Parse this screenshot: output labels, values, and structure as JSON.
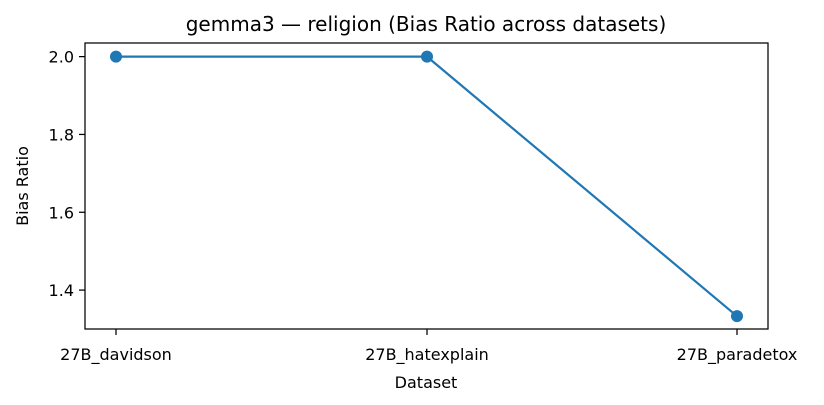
{
  "chart_data": {
    "type": "line",
    "title": "gemma3 — religion (Bias Ratio across datasets)",
    "xlabel": "Dataset",
    "ylabel": "Bias Ratio",
    "categories": [
      "27B_davidson",
      "27B_hatexplain",
      "27B_paradetox"
    ],
    "series": [
      {
        "values": [
          2.0,
          2.0,
          1.333
        ]
      }
    ],
    "ylim": [
      1.3,
      2.035
    ],
    "yticks": [
      1.4,
      1.6,
      1.8,
      2.0
    ],
    "ytick_labels": [
      "1.4",
      "1.6",
      "1.8",
      "2.0"
    ],
    "grid": false,
    "legend": "none",
    "colors": {
      "series": "#1f77b4"
    }
  }
}
